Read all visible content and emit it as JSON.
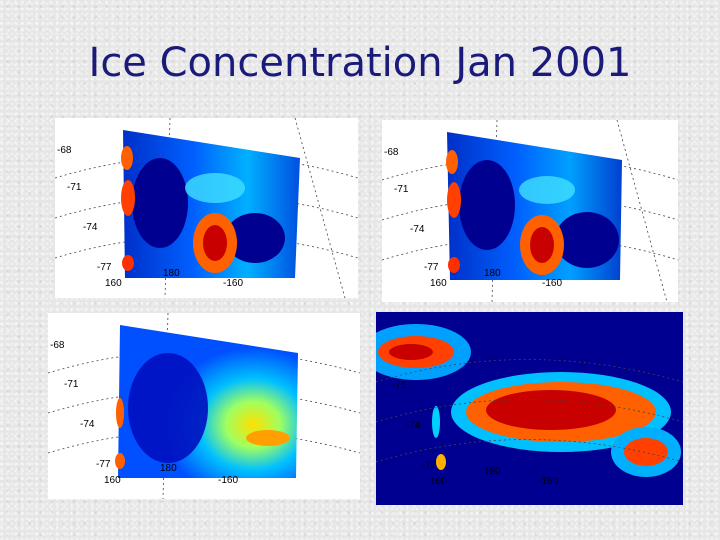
{
  "slide": {
    "title": "Ice Concentration Jan 2001"
  },
  "panels": [
    {
      "lat_labels": [
        "-68",
        "-71",
        "-74",
        "-77"
      ],
      "lon_labels": [
        "160",
        "180",
        "-160"
      ]
    },
    {
      "lat_labels": [
        "-68",
        "-71",
        "-74",
        "-77"
      ],
      "lon_labels": [
        "160",
        "180",
        "-160"
      ]
    },
    {
      "lat_labels": [
        "-68",
        "-71",
        "-74",
        "-77"
      ],
      "lon_labels": [
        "160",
        "180",
        "-160"
      ]
    },
    {
      "lat_labels": [
        "-71",
        "-74",
        "-77"
      ],
      "lon_labels": [
        "160",
        "180",
        "-160"
      ]
    }
  ],
  "colors": {
    "title": "#1a1a7a",
    "ice_low": "#00008f",
    "ice_mid": "#00a0ff",
    "ice_high": "#c80000"
  }
}
